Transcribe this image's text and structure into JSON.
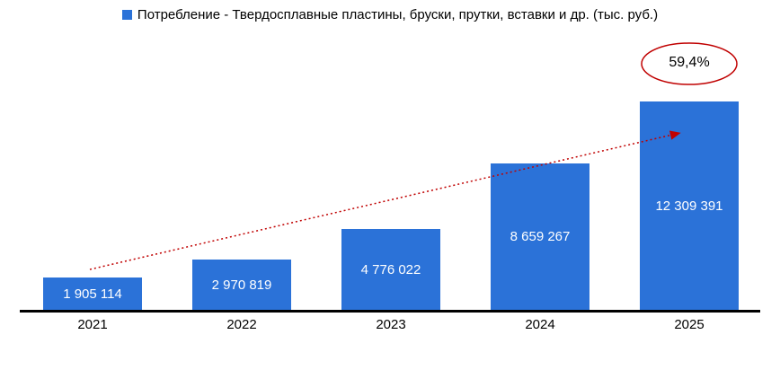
{
  "legend": {
    "label": "Потребление - Твердосплавные пластины, бруски, прутки, вставки и др. (тыс. руб.)"
  },
  "annotation": {
    "value": "59,4%",
    "color": "#C00000"
  },
  "chart_data": {
    "type": "bar",
    "title": "",
    "categories": [
      "2021",
      "2022",
      "2023",
      "2024",
      "2025"
    ],
    "series": [
      {
        "name": "Потребление - Твердосплавные пластины, бруски, прутки, вставки и др. (тыс. руб.)",
        "values": [
          1905114,
          2970819,
          4776022,
          8659267,
          12309391
        ]
      }
    ],
    "data_labels": [
      "1 905 114",
      "2 970 819",
      "4 776 022",
      "8 659 267",
      "12 309 391"
    ],
    "bar_color": "#2B72D8",
    "data_label_color": "#FFFFFF",
    "ylim": [
      0,
      13000000
    ],
    "grid": false,
    "legend_position": "top",
    "annotations": [
      {
        "type": "trend-arrow",
        "style": "dotted",
        "color": "#C00000",
        "from_category": "2021",
        "to_category": "2025"
      },
      {
        "type": "ellipse-callout",
        "text": "59,4%",
        "color": "#C00000"
      }
    ]
  }
}
